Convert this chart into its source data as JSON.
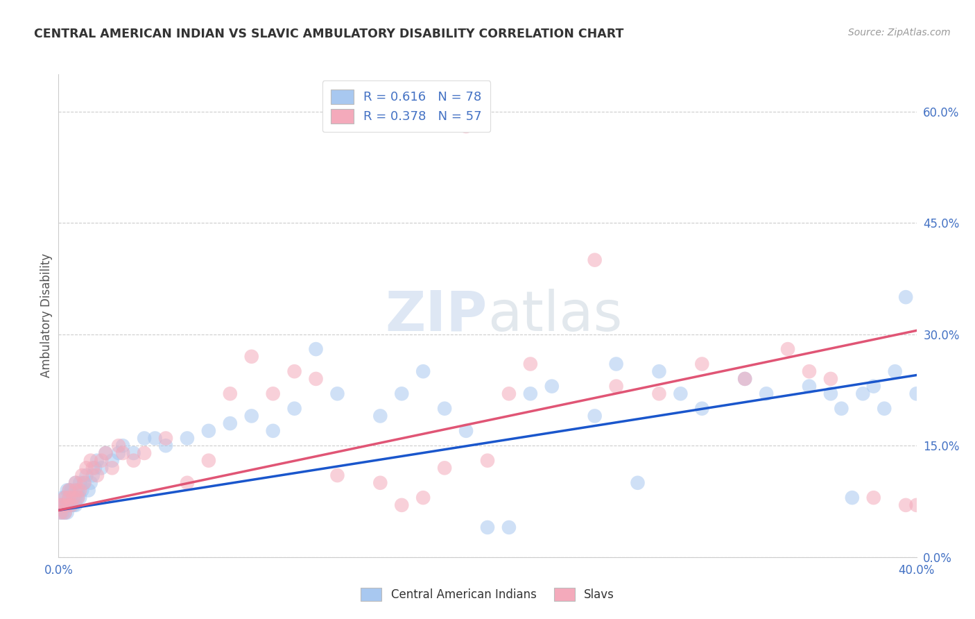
{
  "title": "CENTRAL AMERICAN INDIAN VS SLAVIC AMBULATORY DISABILITY CORRELATION CHART",
  "source": "Source: ZipAtlas.com",
  "ylabel": "Ambulatory Disability",
  "right_yticks": [
    "0.0%",
    "15.0%",
    "30.0%",
    "45.0%",
    "60.0%"
  ],
  "right_ytick_vals": [
    0.0,
    0.15,
    0.3,
    0.45,
    0.6
  ],
  "xmin": 0.0,
  "xmax": 0.4,
  "ymin": 0.0,
  "ymax": 0.65,
  "blue_color": "#A8C8F0",
  "pink_color": "#F4AABB",
  "blue_line_color": "#1A56CC",
  "pink_line_color": "#E05575",
  "legend_r_blue": "0.616",
  "legend_n_blue": "78",
  "legend_r_pink": "0.378",
  "legend_n_pink": "57",
  "legend_label_blue": "Central American Indians",
  "legend_label_pink": "Slavs",
  "watermark_zip": "ZIP",
  "watermark_atlas": "atlas",
  "blue_scatter_x": [
    0.001,
    0.001,
    0.002,
    0.002,
    0.002,
    0.003,
    0.003,
    0.003,
    0.004,
    0.004,
    0.004,
    0.005,
    0.005,
    0.005,
    0.006,
    0.006,
    0.006,
    0.007,
    0.007,
    0.008,
    0.008,
    0.008,
    0.009,
    0.009,
    0.01,
    0.01,
    0.011,
    0.012,
    0.013,
    0.014,
    0.015,
    0.016,
    0.017,
    0.018,
    0.02,
    0.022,
    0.025,
    0.028,
    0.03,
    0.035,
    0.04,
    0.045,
    0.05,
    0.06,
    0.07,
    0.08,
    0.09,
    0.1,
    0.11,
    0.12,
    0.13,
    0.15,
    0.16,
    0.17,
    0.18,
    0.19,
    0.2,
    0.21,
    0.22,
    0.23,
    0.25,
    0.26,
    0.27,
    0.28,
    0.29,
    0.3,
    0.32,
    0.33,
    0.35,
    0.36,
    0.37,
    0.38,
    0.39,
    0.4,
    0.395,
    0.385,
    0.375,
    0.365
  ],
  "blue_scatter_y": [
    0.06,
    0.07,
    0.06,
    0.07,
    0.08,
    0.06,
    0.07,
    0.08,
    0.06,
    0.07,
    0.09,
    0.07,
    0.08,
    0.09,
    0.07,
    0.08,
    0.09,
    0.07,
    0.08,
    0.07,
    0.08,
    0.1,
    0.08,
    0.09,
    0.08,
    0.1,
    0.09,
    0.1,
    0.11,
    0.09,
    0.1,
    0.11,
    0.12,
    0.13,
    0.12,
    0.14,
    0.13,
    0.14,
    0.15,
    0.14,
    0.16,
    0.16,
    0.15,
    0.16,
    0.17,
    0.18,
    0.19,
    0.17,
    0.2,
    0.28,
    0.22,
    0.19,
    0.22,
    0.25,
    0.2,
    0.17,
    0.04,
    0.04,
    0.22,
    0.23,
    0.19,
    0.26,
    0.1,
    0.25,
    0.22,
    0.2,
    0.24,
    0.22,
    0.23,
    0.22,
    0.08,
    0.23,
    0.25,
    0.22,
    0.35,
    0.2,
    0.22,
    0.2
  ],
  "pink_scatter_x": [
    0.001,
    0.001,
    0.002,
    0.003,
    0.003,
    0.004,
    0.005,
    0.005,
    0.006,
    0.007,
    0.008,
    0.008,
    0.009,
    0.01,
    0.011,
    0.012,
    0.013,
    0.015,
    0.016,
    0.018,
    0.02,
    0.022,
    0.025,
    0.028,
    0.03,
    0.035,
    0.04,
    0.05,
    0.06,
    0.07,
    0.08,
    0.09,
    0.1,
    0.11,
    0.12,
    0.13,
    0.15,
    0.16,
    0.17,
    0.18,
    0.19,
    0.2,
    0.21,
    0.22,
    0.25,
    0.26,
    0.28,
    0.3,
    0.32,
    0.34,
    0.35,
    0.36,
    0.38,
    0.395,
    0.4,
    0.405,
    0.41
  ],
  "pink_scatter_y": [
    0.06,
    0.07,
    0.07,
    0.06,
    0.08,
    0.07,
    0.08,
    0.09,
    0.07,
    0.08,
    0.09,
    0.1,
    0.08,
    0.09,
    0.11,
    0.1,
    0.12,
    0.13,
    0.12,
    0.11,
    0.13,
    0.14,
    0.12,
    0.15,
    0.14,
    0.13,
    0.14,
    0.16,
    0.1,
    0.13,
    0.22,
    0.27,
    0.22,
    0.25,
    0.24,
    0.11,
    0.1,
    0.07,
    0.08,
    0.12,
    0.58,
    0.13,
    0.22,
    0.26,
    0.4,
    0.23,
    0.22,
    0.26,
    0.24,
    0.28,
    0.25,
    0.24,
    0.08,
    0.07,
    0.07,
    0.08,
    0.08
  ],
  "blue_line_x0": 0.0,
  "blue_line_x1": 0.4,
  "blue_line_y0": 0.063,
  "blue_line_y1": 0.245,
  "pink_line_x0": 0.0,
  "pink_line_x1": 0.4,
  "pink_line_y0": 0.063,
  "pink_line_y1": 0.305
}
